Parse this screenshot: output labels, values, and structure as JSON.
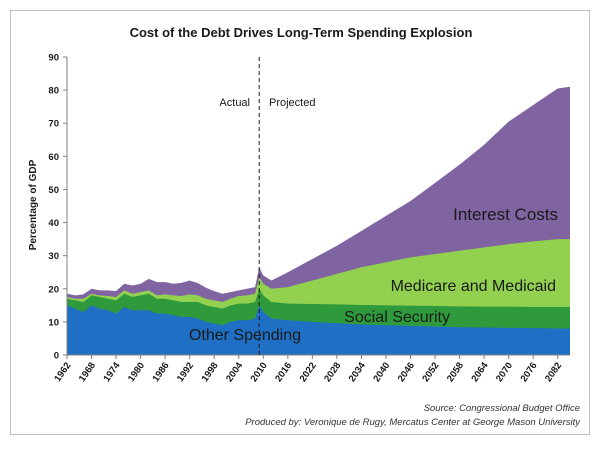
{
  "chart_data": {
    "type": "area",
    "title": "Cost of the Debt Drives Long-Term Spending Explosion",
    "xlabel": "",
    "ylabel": "Percentage of GDP",
    "ylim": [
      0,
      90
    ],
    "yticks": [
      0,
      10,
      20,
      30,
      40,
      50,
      60,
      70,
      80,
      90
    ],
    "xticks": [
      "1962",
      "1968",
      "1974",
      "1980",
      "1986",
      "1992",
      "1998",
      "2004",
      "2010",
      "2016",
      "2022",
      "2028",
      "2034",
      "2040",
      "2046",
      "2052",
      "2058",
      "2064",
      "2070",
      "2076",
      "2082"
    ],
    "divider_year": 2009,
    "annotations": {
      "left": "Actual",
      "right": "Projected"
    },
    "stacking": "cumulative",
    "x": [
      1962,
      1964,
      1966,
      1968,
      1970,
      1972,
      1974,
      1976,
      1978,
      1980,
      1982,
      1984,
      1986,
      1988,
      1990,
      1992,
      1994,
      1996,
      1998,
      2000,
      2002,
      2004,
      2006,
      2008,
      2009,
      2010,
      2012,
      2016,
      2022,
      2028,
      2034,
      2040,
      2046,
      2052,
      2058,
      2064,
      2070,
      2076,
      2082,
      2085
    ],
    "series": [
      {
        "name": "Other Spending",
        "color": "#1f6fc5",
        "values": [
          15,
          14,
          13,
          15,
          14,
          13.5,
          12.5,
          14.5,
          13.5,
          13.5,
          13.5,
          12.5,
          12.5,
          12,
          11.5,
          11.5,
          11,
          10,
          9.5,
          9,
          10,
          10.5,
          10.5,
          11,
          15,
          13,
          11,
          10.5,
          10,
          9.6,
          9.2,
          9,
          8.8,
          8.6,
          8.4,
          8.3,
          8.2,
          8.1,
          8,
          8
        ]
      },
      {
        "name": "Social Security",
        "color": "#2e9a3c",
        "values": [
          17,
          16.5,
          16,
          18,
          17.5,
          17,
          16.5,
          18.5,
          17.5,
          18,
          18.5,
          17,
          17,
          16.5,
          16,
          16,
          16,
          15,
          14.5,
          14,
          15,
          15.5,
          15.5,
          16,
          20,
          18,
          16,
          15.5,
          15.4,
          15.3,
          15.1,
          15,
          14.9,
          14.8,
          14.7,
          14.6,
          14.6,
          14.5,
          14.5,
          14.5
        ]
      },
      {
        "name": "Medicare and Medicaid",
        "color": "#92d050",
        "values": [
          17.5,
          17,
          17,
          18.5,
          18,
          17.8,
          17.5,
          19.5,
          18.5,
          19,
          19.5,
          18,
          18.3,
          18,
          17.8,
          18.3,
          18,
          17,
          16.5,
          16,
          17,
          17.8,
          18,
          18.5,
          23.5,
          21.5,
          20,
          20.5,
          22.5,
          24.5,
          26.5,
          28,
          29.5,
          30.5,
          31.5,
          32.5,
          33.5,
          34.3,
          35,
          35
        ]
      },
      {
        "name": "Interest Costs",
        "color": "#8064a2",
        "values": [
          18.5,
          18,
          18.3,
          20,
          19.5,
          19.5,
          19.3,
          21.5,
          21,
          21.5,
          23,
          22,
          22,
          21.5,
          21.8,
          22.5,
          21.7,
          20.3,
          19.3,
          18.5,
          19,
          19.5,
          20,
          20.5,
          26.5,
          24,
          22.5,
          25,
          29,
          33,
          37.5,
          42,
          46.5,
          52,
          57.5,
          63.5,
          70.5,
          75.5,
          80.5,
          81
        ]
      }
    ],
    "series_labels": [
      "Interest Costs",
      "Medicare and Medicaid",
      "Social Security",
      "Other Spending"
    ],
    "source": "Source: Congressional Budget Office",
    "produced_by": "Produced by: Veronique de Rugy, Mercatus Center at George Mason University"
  }
}
